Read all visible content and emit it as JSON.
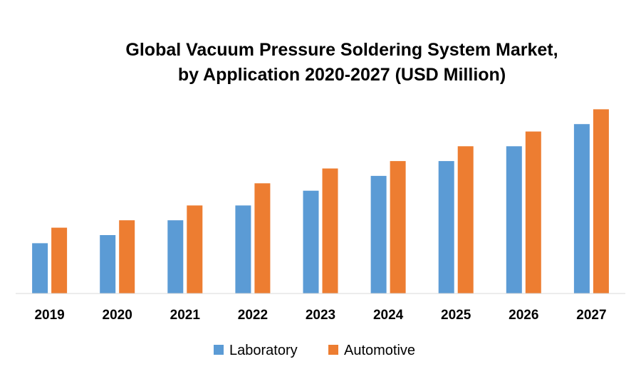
{
  "chart_data": {
    "type": "bar",
    "title_lines": [
      "Global Vacuum Pressure Soldering System Market,",
      "by Application 2020-2027 (USD Million)"
    ],
    "categories": [
      "2019",
      "2020",
      "2021",
      "2022",
      "2023",
      "2024",
      "2025",
      "2026",
      "2027"
    ],
    "series": [
      {
        "name": "Laboratory",
        "color": "#5B9BD5",
        "values": [
          68,
          79,
          99,
          119,
          139,
          159,
          179,
          199,
          229
        ]
      },
      {
        "name": "Automotive",
        "color": "#ED7D31",
        "values": [
          89,
          99,
          119,
          149,
          169,
          179,
          199,
          219,
          249
        ]
      }
    ],
    "xlabel": "",
    "ylabel": "",
    "ylim": [
      0,
      260
    ],
    "y_axis_visible": false,
    "grid": false,
    "legend_position": "bottom"
  }
}
